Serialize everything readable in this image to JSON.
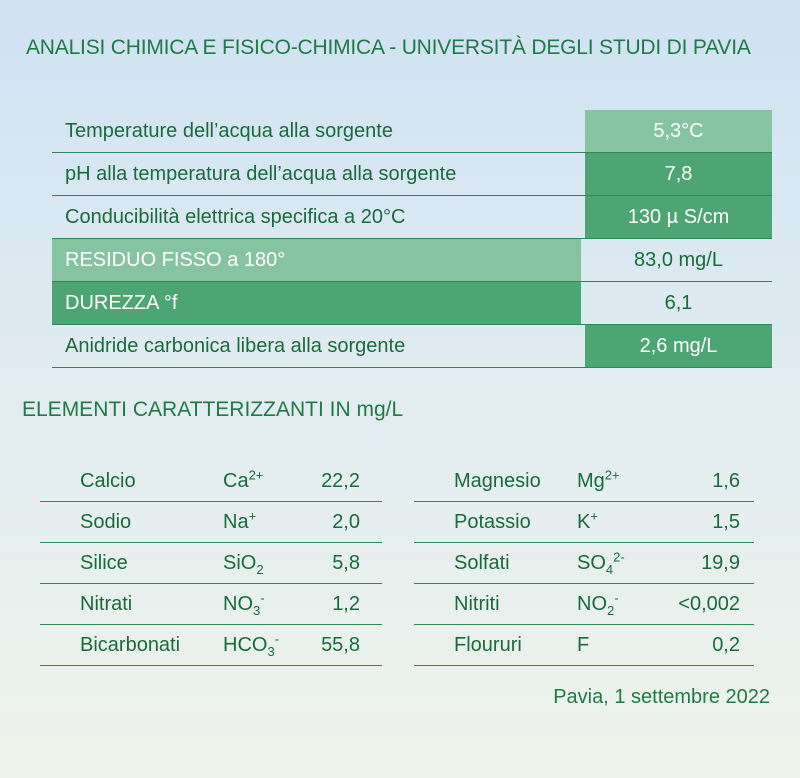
{
  "title": "ANALISI CHIMICA E FISICO-CHIMICA - UNIVERSITÀ DEGLI STUDI DI PAVIA",
  "main_rows": [
    {
      "label": "Temperature dell’acqua alla sorgente",
      "value": "5,3°C"
    },
    {
      "label": "pH alla temperatura dell’acqua alla sorgente",
      "value": "7,8"
    },
    {
      "label": "Conducibilità elettrica specifica a 20°C",
      "value": "130 µ S/cm"
    },
    {
      "label": "RESIDUO FISSO a 180°",
      "value": "83,0 mg/L"
    },
    {
      "label": "DUREZZA °f",
      "value": "6,1"
    },
    {
      "label": "Anidride carbonica libera alla sorgente",
      "value": "2,6 mg/L"
    }
  ],
  "elements_title": "ELEMENTI CARATTERIZZANTI IN mg/L",
  "left_elements": [
    {
      "name": "Calcio",
      "sym": "Ca",
      "sup": "2+",
      "sub": "",
      "sup2": "",
      "value": "22,2"
    },
    {
      "name": "Sodio",
      "sym": "Na",
      "sup": "+",
      "sub": "",
      "sup2": "",
      "value": "2,0"
    },
    {
      "name": "Silice",
      "sym": "SiO",
      "sup": "",
      "sub": "2",
      "sup2": "",
      "value": "5,8"
    },
    {
      "name": "Nitrati",
      "sym": "NO",
      "sup": "",
      "sub": "3",
      "sup2": "-",
      "value": "1,2"
    },
    {
      "name": "Bicarbonati",
      "sym": "HCO",
      "sup": "",
      "sub": "3",
      "sup2": "-",
      "value": "55,8"
    }
  ],
  "right_elements": [
    {
      "name": "Magnesio",
      "sym": "Mg",
      "sup": "2+",
      "sub": "",
      "sup2": "",
      "value": "1,6"
    },
    {
      "name": "Potassio",
      "sym": "K",
      "sup": "+",
      "sub": "",
      "sup2": "",
      "value": "1,5"
    },
    {
      "name": "Solfati",
      "sym": "SO",
      "sup": "",
      "sub": "4",
      "sup2": "2-",
      "value": "19,9"
    },
    {
      "name": "Nitriti",
      "sym": "NO",
      "sup": "",
      "sub": "2",
      "sup2": "-",
      "value": "<0,002"
    },
    {
      "name": "Floururi",
      "sym": "F",
      "sup": "",
      "sub": "",
      "sup2": "",
      "value": "0,2"
    }
  ],
  "date": "Pavia, 1 settembre 2022"
}
